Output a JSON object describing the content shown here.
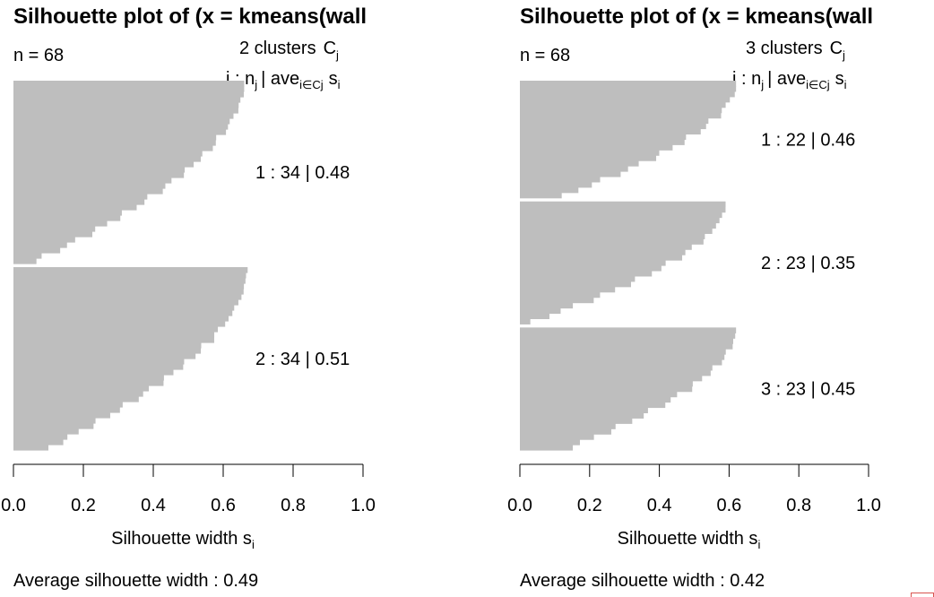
{
  "chart_data": [
    {
      "type": "bar",
      "title": "Silhouette plot of (x = kmeans(wall",
      "n_label": "n = 68",
      "clusters_label": "2 clusters",
      "header_label": "j :  n",
      "header_ave": "| ave",
      "header_sub": "i∈Cj",
      "header_s": "s",
      "xlabel": "Silhouette width s",
      "xlabel_sub": "i",
      "avg_label": "Average silhouette width :  0.49",
      "xlim": [
        0,
        1
      ],
      "xticks": [
        "0.0",
        "0.2",
        "0.4",
        "0.6",
        "0.8",
        "1.0"
      ],
      "clusters": [
        {
          "label": "1 :   34  |  0.48",
          "n": 34,
          "average": 0.48,
          "max": 0.66,
          "min": 0.06
        },
        {
          "label": "2 :   34  |  0.51",
          "n": 34,
          "average": 0.51,
          "max": 0.67,
          "min": 0.1
        }
      ]
    },
    {
      "type": "bar",
      "title": "Silhouette plot of (x = kmeans(wall",
      "n_label": "n = 68",
      "clusters_label": "3 clusters",
      "header_label": "j :  n",
      "header_ave": "| ave",
      "header_sub": "i∈Cj",
      "header_s": "s",
      "xlabel": "Silhouette width s",
      "xlabel_sub": "i",
      "avg_label": "Average silhouette width :  0.42",
      "xlim": [
        0,
        1
      ],
      "xticks": [
        "0.0",
        "0.2",
        "0.4",
        "0.6",
        "0.8",
        "1.0"
      ],
      "clusters": [
        {
          "label": "1 :   22  |  0.46",
          "n": 22,
          "average": 0.46,
          "max": 0.62,
          "min": 0.12
        },
        {
          "label": "2 :   23  |  0.35",
          "n": 23,
          "average": 0.35,
          "max": 0.59,
          "min": 0.03
        },
        {
          "label": "3 :   23  |  0.45",
          "n": 23,
          "average": 0.45,
          "max": 0.62,
          "min": 0.14
        }
      ]
    }
  ],
  "colors": {
    "bar": "#bebebe",
    "text": "#000000",
    "corner": "#d9534f"
  }
}
